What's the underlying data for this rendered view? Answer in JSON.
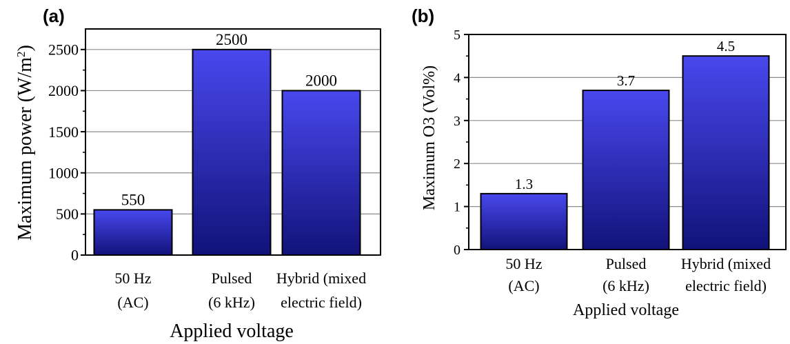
{
  "chart_data": [
    {
      "panel_label": "(a)",
      "type": "bar",
      "categories": [
        [
          "50 Hz",
          "(AC)"
        ],
        [
          "Pulsed",
          "(6 kHz)"
        ],
        [
          "Hybrid (mixed",
          "electric field)"
        ]
      ],
      "values": [
        550,
        2500,
        2000
      ],
      "data_labels": [
        "550",
        "2500",
        "2000"
      ],
      "xlabel": "Applied voltage",
      "ylabel_main": "Maximum power (W/m",
      "ylabel_sup": "2",
      "ylabel_end": ")",
      "ylim": [
        0,
        2750
      ],
      "yticks": [
        0,
        500,
        1000,
        1500,
        2000,
        2500
      ],
      "ytick_labels": [
        "0",
        "500",
        "1000",
        "1500",
        "2000",
        "2500"
      ],
      "grid": true,
      "bar_color_top": "#4848ee",
      "bar_color_bottom": "#12127a"
    },
    {
      "panel_label": "(b)",
      "type": "bar",
      "categories": [
        [
          "50 Hz",
          "(AC)"
        ],
        [
          "Pulsed",
          "(6 kHz)"
        ],
        [
          "Hybrid (mixed",
          "electric field)"
        ]
      ],
      "values": [
        1.3,
        3.7,
        4.5
      ],
      "data_labels": [
        "1.3",
        "3.7",
        "4.5"
      ],
      "xlabel": "Applied voltage",
      "ylabel": "Maximum O3 (Vol%)",
      "ylim": [
        0,
        5
      ],
      "yticks": [
        0,
        1,
        2,
        3,
        4,
        5
      ],
      "ytick_labels": [
        "0",
        "1",
        "2",
        "3",
        "4",
        "5"
      ],
      "grid": true,
      "bar_color_top": "#4848ee",
      "bar_color_bottom": "#12127a"
    }
  ]
}
